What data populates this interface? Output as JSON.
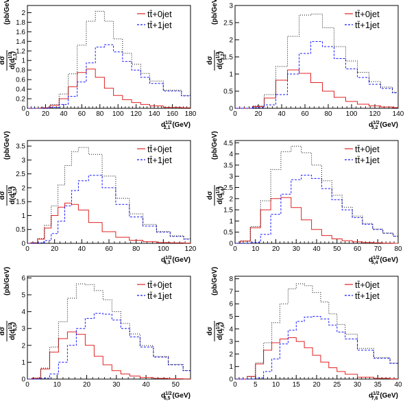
{
  "colors": {
    "series_0jet": "#e02020",
    "series_1jet": "#1a1aff",
    "sum": "#000000",
    "axis": "#000000"
  },
  "legend": {
    "label_0jet": "tt̄+0jet",
    "label_1jet": "tt̄+1jet"
  },
  "chart_data": [
    {
      "type": "line",
      "title": "",
      "xlabel": "d_{2,1}^{1/2} (GeV)",
      "ylabel": "dσ/d(d_{2,1}^{1/2}) (pb/GeV)",
      "xlim": [
        0,
        180
      ],
      "ylim": [
        0,
        2.15
      ],
      "xticks": [
        0,
        20,
        40,
        60,
        80,
        100,
        120,
        140,
        160,
        180
      ],
      "yticks": [
        0,
        0.2,
        0.4,
        0.6,
        0.8,
        1,
        1.2,
        1.4,
        1.6,
        1.8,
        2
      ],
      "legend_position": "top-right",
      "series": [
        {
          "name": "tt̄+0jet",
          "style": "solid",
          "x": [
            0,
            10,
            20,
            30,
            40,
            50,
            60,
            70,
            80,
            90,
            100,
            110,
            120,
            130,
            140,
            160,
            180
          ],
          "values": [
            0,
            0,
            0.01,
            0.06,
            0.2,
            0.45,
            0.75,
            0.82,
            0.65,
            0.42,
            0.27,
            0.18,
            0.12,
            0.08,
            0.05,
            0.02,
            0.01
          ]
        },
        {
          "name": "tt̄+1jet",
          "style": "dashed",
          "x": [
            0,
            10,
            20,
            30,
            40,
            50,
            60,
            70,
            80,
            90,
            100,
            110,
            120,
            130,
            140,
            160,
            180
          ],
          "values": [
            0,
            0,
            0,
            0.02,
            0.08,
            0.25,
            0.55,
            0.95,
            1.28,
            1.33,
            1.18,
            0.98,
            0.8,
            0.65,
            0.52,
            0.36,
            0.26
          ]
        },
        {
          "name": "",
          "style": "dotted",
          "x": [
            0,
            10,
            20,
            30,
            40,
            50,
            60,
            70,
            80,
            90,
            100,
            110,
            120,
            130,
            140,
            160,
            180
          ],
          "values": [
            0,
            0,
            0.01,
            0.08,
            0.3,
            0.72,
            1.32,
            1.82,
            2.03,
            1.82,
            1.45,
            1.15,
            0.92,
            0.73,
            0.57,
            0.38,
            0.27
          ]
        }
      ]
    },
    {
      "type": "line",
      "title": "",
      "xlabel": "d_{3,2}^{1/2} (GeV)",
      "ylabel": "dσ/d(d_{3,2}^{1/2}) (pb/GeV)",
      "xlim": [
        0,
        140
      ],
      "ylim": [
        0,
        3.0
      ],
      "xticks": [
        0,
        20,
        40,
        60,
        80,
        100,
        120,
        140
      ],
      "yticks": [
        0,
        0.5,
        1,
        1.5,
        2,
        2.5,
        3
      ],
      "legend_position": "top-right",
      "series": [
        {
          "name": "tt̄+0jet",
          "style": "solid",
          "x": [
            0,
            10,
            20,
            30,
            40,
            50,
            60,
            70,
            80,
            90,
            100,
            110,
            120,
            130,
            140
          ],
          "values": [
            0,
            0,
            0.05,
            0.3,
            0.82,
            1.12,
            1.02,
            0.75,
            0.5,
            0.32,
            0.2,
            0.12,
            0.07,
            0.04,
            0.02
          ]
        },
        {
          "name": "tt̄+1jet",
          "style": "dashed",
          "x": [
            0,
            10,
            20,
            30,
            40,
            50,
            60,
            70,
            80,
            90,
            100,
            110,
            120,
            130,
            140
          ],
          "values": [
            0,
            0,
            0.02,
            0.1,
            0.4,
            1.0,
            1.6,
            1.95,
            1.8,
            1.45,
            1.15,
            0.9,
            0.7,
            0.58,
            0.45
          ]
        },
        {
          "name": "",
          "style": "dotted",
          "x": [
            0,
            10,
            20,
            30,
            40,
            50,
            60,
            70,
            80,
            90,
            100,
            110,
            120,
            130,
            140
          ],
          "values": [
            0,
            0,
            0.07,
            0.4,
            1.22,
            2.1,
            2.72,
            2.75,
            2.35,
            1.8,
            1.38,
            1.05,
            0.78,
            0.62,
            0.47
          ]
        }
      ]
    },
    {
      "type": "line",
      "title": "",
      "xlabel": "d_{4,3}^{1/2} (GeV)",
      "ylabel": "dσ/d(d_{4,3}^{1/2}) (pb/GeV)",
      "xlim": [
        0,
        120
      ],
      "ylim": [
        0,
        3.7
      ],
      "xticks": [
        0,
        20,
        40,
        60,
        80,
        100,
        120
      ],
      "yticks": [
        0,
        0.5,
        1,
        1.5,
        2,
        2.5,
        3,
        3.5
      ],
      "legend_position": "top-right",
      "series": [
        {
          "name": "tt̄+0jet",
          "style": "solid",
          "x": [
            0,
            5,
            10,
            15,
            20,
            25,
            30,
            35,
            40,
            50,
            60,
            70,
            80,
            90,
            100,
            110,
            120
          ],
          "values": [
            0,
            0.02,
            0.15,
            0.55,
            1.0,
            1.3,
            1.45,
            1.4,
            1.2,
            0.75,
            0.42,
            0.22,
            0.11,
            0.06,
            0.03,
            0.02,
            0.01
          ]
        },
        {
          "name": "tt̄+1jet",
          "style": "dashed",
          "x": [
            0,
            5,
            10,
            15,
            20,
            25,
            30,
            35,
            40,
            50,
            60,
            70,
            80,
            90,
            100,
            110,
            120
          ],
          "values": [
            0,
            0,
            0.02,
            0.1,
            0.35,
            0.8,
            1.35,
            1.9,
            2.25,
            2.45,
            2.0,
            1.4,
            0.95,
            0.62,
            0.4,
            0.25,
            0.15
          ]
        },
        {
          "name": "",
          "style": "dotted",
          "x": [
            0,
            5,
            10,
            15,
            20,
            25,
            30,
            35,
            40,
            50,
            60,
            70,
            80,
            90,
            100,
            110,
            120
          ],
          "values": [
            0,
            0.02,
            0.17,
            0.65,
            1.35,
            2.1,
            2.8,
            3.3,
            3.45,
            3.2,
            2.42,
            1.62,
            1.06,
            0.68,
            0.43,
            0.27,
            0.16
          ]
        }
      ]
    },
    {
      "type": "line",
      "title": "",
      "xlabel": "d_{5,4}^{1/2} (GeV)",
      "ylabel": "dσ/d(d_{5,4}^{1/2}) (pb/GeV)",
      "xlim": [
        0,
        80
      ],
      "ylim": [
        0,
        4.6
      ],
      "xticks": [
        0,
        10,
        20,
        30,
        40,
        50,
        60,
        70,
        80
      ],
      "yticks": [
        0,
        0.5,
        1,
        1.5,
        2,
        2.5,
        3,
        3.5,
        4,
        4.5
      ],
      "legend_position": "top-right",
      "series": [
        {
          "name": "tt̄+0jet",
          "style": "solid",
          "x": [
            0,
            5,
            10,
            15,
            20,
            25,
            30,
            35,
            40,
            45,
            50,
            55,
            60,
            65,
            70,
            75,
            80
          ],
          "values": [
            0,
            0.1,
            0.7,
            1.5,
            2.0,
            2.05,
            1.6,
            1.05,
            0.62,
            0.35,
            0.2,
            0.12,
            0.07,
            0.04,
            0.02,
            0.01,
            0
          ]
        },
        {
          "name": "tt̄+1jet",
          "style": "dashed",
          "x": [
            0,
            5,
            10,
            15,
            20,
            25,
            30,
            35,
            40,
            45,
            50,
            55,
            60,
            65,
            70,
            75,
            80
          ],
          "values": [
            0,
            0,
            0.05,
            0.4,
            1.3,
            2.2,
            2.85,
            3.05,
            2.9,
            2.45,
            1.95,
            1.5,
            1.15,
            0.85,
            0.62,
            0.45,
            0.32
          ]
        },
        {
          "name": "",
          "style": "dotted",
          "x": [
            0,
            5,
            10,
            15,
            20,
            25,
            30,
            35,
            40,
            45,
            50,
            55,
            60,
            65,
            70,
            75,
            80
          ],
          "values": [
            0,
            0.1,
            0.75,
            1.9,
            3.3,
            4.1,
            4.35,
            4.05,
            3.5,
            2.8,
            2.15,
            1.62,
            1.22,
            0.89,
            0.64,
            0.46,
            0.32
          ]
        }
      ]
    },
    {
      "type": "line",
      "title": "",
      "xlabel": "d_{6,5}^{1/2} (GeV)",
      "ylabel": "dσ/d(d_{6,5}^{1/2}) (pb/GeV)",
      "xlim": [
        0,
        55
      ],
      "ylim": [
        0,
        6.1
      ],
      "xticks": [
        0,
        10,
        20,
        30,
        40,
        50
      ],
      "yticks": [
        0,
        1,
        2,
        3,
        4,
        5,
        6
      ],
      "legend_position": "top-right",
      "series": [
        {
          "name": "tt̄+0jet",
          "style": "solid",
          "x": [
            0,
            3,
            6,
            9,
            12,
            15,
            18,
            21,
            24,
            27,
            30,
            33,
            36,
            40,
            45,
            50,
            55
          ],
          "values": [
            0,
            0.05,
            0.6,
            1.6,
            2.4,
            2.8,
            2.65,
            2.0,
            1.35,
            0.85,
            0.5,
            0.3,
            0.18,
            0.09,
            0.04,
            0.02,
            0.01
          ]
        },
        {
          "name": "tt̄+1jet",
          "style": "dashed",
          "x": [
            0,
            3,
            6,
            9,
            12,
            15,
            18,
            21,
            24,
            27,
            30,
            33,
            36,
            40,
            45,
            50,
            55
          ],
          "values": [
            0,
            0,
            0.05,
            0.3,
            1.0,
            2.0,
            3.0,
            3.6,
            3.9,
            3.85,
            3.5,
            3.0,
            2.5,
            1.9,
            1.3,
            0.85,
            0.5
          ]
        },
        {
          "name": "",
          "style": "dotted",
          "x": [
            0,
            3,
            6,
            9,
            12,
            15,
            18,
            21,
            24,
            27,
            30,
            33,
            36,
            40,
            45,
            50,
            55
          ],
          "values": [
            0,
            0.05,
            0.65,
            1.9,
            3.4,
            4.8,
            5.65,
            5.6,
            5.25,
            4.7,
            4.0,
            3.3,
            2.68,
            1.99,
            1.34,
            0.87,
            0.51
          ]
        }
      ]
    },
    {
      "type": "line",
      "title": "",
      "xlabel": "d_{7,6}^{1/2} (GeV)",
      "ylabel": "dσ/d(d_{7,6}^{1/2}) (pb/GeV)",
      "xlim": [
        0,
        40
      ],
      "ylim": [
        0,
        8.2
      ],
      "xticks": [
        0,
        5,
        10,
        15,
        20,
        25,
        30,
        35,
        40
      ],
      "yticks": [
        0,
        1,
        2,
        3,
        4,
        5,
        6,
        7,
        8
      ],
      "legend_position": "top-right",
      "series": [
        {
          "name": "tt̄+0jet",
          "style": "solid",
          "x": [
            0,
            2,
            4,
            6,
            8,
            10,
            12,
            14,
            16,
            18,
            20,
            22,
            24,
            26,
            28,
            32,
            36,
            40
          ],
          "values": [
            0,
            0,
            0.2,
            1.2,
            2.3,
            2.9,
            3.2,
            3.3,
            3.0,
            2.5,
            1.9,
            1.35,
            0.9,
            0.6,
            0.38,
            0.15,
            0.06,
            0.02
          ]
        },
        {
          "name": "tt̄+1jet",
          "style": "dashed",
          "x": [
            0,
            2,
            4,
            6,
            8,
            10,
            12,
            14,
            16,
            18,
            20,
            22,
            24,
            26,
            28,
            32,
            36,
            40
          ],
          "values": [
            0,
            0,
            0,
            0.1,
            0.6,
            1.6,
            2.8,
            3.9,
            4.6,
            4.95,
            5.0,
            4.8,
            4.3,
            3.75,
            3.2,
            2.3,
            1.65,
            1.25
          ]
        },
        {
          "name": "",
          "style": "dotted",
          "x": [
            0,
            2,
            4,
            6,
            8,
            10,
            12,
            14,
            16,
            18,
            20,
            22,
            24,
            26,
            28,
            32,
            36,
            40
          ],
          "values": [
            0,
            0,
            0.2,
            1.3,
            2.9,
            4.5,
            6.0,
            7.2,
            7.6,
            7.45,
            6.9,
            6.15,
            5.2,
            4.35,
            3.58,
            2.45,
            1.71,
            1.27
          ]
        }
      ]
    }
  ]
}
